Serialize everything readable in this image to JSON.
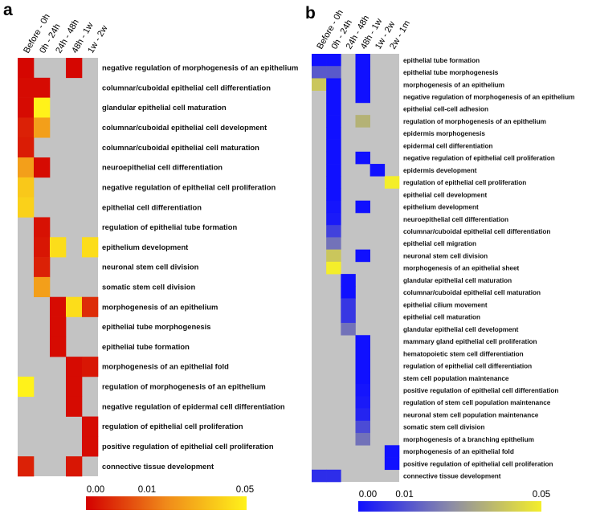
{
  "chart_data": [
    {
      "type": "heatmap",
      "panel": "a",
      "columns": [
        "Before - 0h",
        "0h - 24h",
        "24h - 48h",
        "48h - 1w",
        "1w - 2w"
      ],
      "rows": [
        "negative regulation of morphogenesis of an epithelium",
        "columnar/cuboidal epithelial cell differentiation",
        "glandular epithelial cell maturation",
        "columnar/cuboidal epithelial cell development",
        "columnar/cuboidal epithelial cell maturation",
        "neuroepithelial cell differentiation",
        "negative regulation of epithelial cell proliferation",
        "epithelial cell differentiation",
        "regulation of epithelial tube formation",
        "epithelium development",
        "neuronal stem cell division",
        "somatic stem cell division",
        "morphogenesis of an epithelium",
        "epithelial tube morphogenesis",
        "epithelial tube formation",
        "morphogenesis of an epithelial fold",
        "regulation of morphogenesis of an epithelium",
        "negative regulation of epidermal cell differentiation",
        "regulation of epithelial cell proliferation",
        "positive regulation of epithelial cell proliferation",
        "connective tissue development"
      ],
      "values": [
        [
          0.001,
          null,
          null,
          0.001,
          null
        ],
        [
          0.002,
          0.002,
          null,
          null,
          null
        ],
        [
          0.002,
          0.05,
          null,
          null,
          null
        ],
        [
          0.006,
          0.03,
          null,
          null,
          null
        ],
        [
          0.005,
          null,
          null,
          null,
          null
        ],
        [
          0.03,
          0.002,
          null,
          null,
          null
        ],
        [
          0.04,
          null,
          null,
          null,
          null
        ],
        [
          0.042,
          null,
          null,
          null,
          null
        ],
        [
          null,
          0.003,
          null,
          null,
          null
        ],
        [
          null,
          0.004,
          0.045,
          null,
          0.045
        ],
        [
          null,
          0.006,
          null,
          null,
          null
        ],
        [
          null,
          0.03,
          null,
          null,
          null
        ],
        [
          null,
          null,
          0.002,
          0.045,
          0.008
        ],
        [
          null,
          null,
          0.002,
          null,
          null
        ],
        [
          null,
          null,
          0.002,
          null,
          null
        ],
        [
          null,
          null,
          null,
          0.002,
          0.004
        ],
        [
          0.05,
          null,
          null,
          0.002,
          null
        ],
        [
          null,
          null,
          null,
          0.002,
          null
        ],
        [
          null,
          null,
          null,
          null,
          0.002
        ],
        [
          null,
          null,
          null,
          null,
          0.002
        ],
        [
          0.006,
          null,
          null,
          0.004,
          null
        ]
      ],
      "legend": {
        "ticks": [
          "0.00",
          "0.01",
          "0.05"
        ],
        "range": [
          0.0,
          0.05
        ],
        "low_color": "#d40000",
        "mid_color": "#f08a1a",
        "high_color": "#fff21a"
      },
      "missing_color": "#c3c3c3"
    },
    {
      "type": "heatmap",
      "panel": "b",
      "columns": [
        "Before - 0h",
        "0h - 24h",
        "24h - 48h",
        "48h - 1w",
        "1w - 2w",
        "2w - 1m"
      ],
      "rows": [
        "epithelial tube formation",
        "epithelial tube morphogenesis",
        "morphogenesis of an epithelium",
        "negative regulation of morphogenesis of an epithelium",
        "epithelial cell-cell adhesion",
        "regulation of morphogenesis of an epithelium",
        "epidermis morphogenesis",
        "epidermal cell differentiation",
        "negative regulation of epithelial cell proliferation",
        "epidermis development",
        "regulation of epithelial cell proliferation",
        "epithelial cell development",
        "epithelium development",
        "neuroepithelial cell differentiation",
        "columnar/cuboidal epithelial cell differentiation",
        "epithelial cell migration",
        "neuronal stem cell division",
        "morphogenesis of an epithelial sheet",
        "glandular epithelial cell maturation",
        "columnar/cuboidal epithelial cell maturation",
        "epithelial cilium movement",
        "epithelial cell maturation",
        "glandular epithelial cell development",
        "mammary gland epithelial cell proliferation",
        "hematopoietic stem cell differentiation",
        "regulation of epithelial cell differentiation",
        "stem cell population maintenance",
        "positive regulation of epithelial cell differentiation",
        "regulation of stem cell population maintenance",
        "neuronal stem cell population maintenance",
        "somatic stem cell division",
        "morphogenesis of a branching epithelium",
        "morphogenesis of an epithelial fold",
        "positive regulation of epithelial cell proliferation",
        "connective tissue development"
      ],
      "values": [
        [
          0.0,
          0.0,
          null,
          0.0,
          null,
          null
        ],
        [
          0.015,
          0.015,
          null,
          0.0,
          null,
          null
        ],
        [
          0.04,
          0.0,
          null,
          0.0,
          null,
          null
        ],
        [
          null,
          0.0,
          null,
          0.0,
          null,
          null
        ],
        [
          null,
          0.0,
          null,
          null,
          null,
          null
        ],
        [
          null,
          0.0,
          null,
          0.035,
          null,
          null
        ],
        [
          null,
          0.0,
          null,
          null,
          null,
          null
        ],
        [
          null,
          0.0,
          null,
          null,
          null,
          null
        ],
        [
          null,
          0.0,
          null,
          0.0,
          null,
          null
        ],
        [
          null,
          0.0,
          null,
          null,
          0.0,
          null
        ],
        [
          null,
          0.0,
          null,
          null,
          null,
          0.05
        ],
        [
          null,
          0.0,
          null,
          null,
          null,
          null
        ],
        [
          null,
          0.001,
          null,
          0.0,
          null,
          null
        ],
        [
          null,
          0.002,
          null,
          null,
          null,
          null
        ],
        [
          null,
          0.01,
          null,
          null,
          null,
          null
        ],
        [
          null,
          0.02,
          null,
          null,
          null,
          null
        ],
        [
          null,
          0.04,
          null,
          0.0,
          null,
          null
        ],
        [
          null,
          0.05,
          null,
          null,
          null,
          null
        ],
        [
          null,
          null,
          0.0,
          null,
          null,
          null
        ],
        [
          null,
          null,
          0.0,
          null,
          null,
          null
        ],
        [
          null,
          null,
          0.008,
          null,
          null,
          null
        ],
        [
          null,
          null,
          0.008,
          null,
          null,
          null
        ],
        [
          null,
          null,
          0.02,
          null,
          null,
          null
        ],
        [
          null,
          null,
          null,
          0.0,
          null,
          null
        ],
        [
          null,
          null,
          null,
          0.0,
          null,
          null
        ],
        [
          null,
          null,
          null,
          0.0,
          null,
          null
        ],
        [
          null,
          null,
          null,
          0.0,
          null,
          null
        ],
        [
          null,
          null,
          null,
          0.001,
          null,
          null
        ],
        [
          null,
          null,
          null,
          0.002,
          null,
          null
        ],
        [
          null,
          null,
          null,
          0.004,
          null,
          null
        ],
        [
          null,
          null,
          null,
          0.012,
          null,
          null
        ],
        [
          null,
          null,
          null,
          0.02,
          null,
          null
        ],
        [
          null,
          null,
          null,
          null,
          null,
          0.0
        ],
        [
          null,
          null,
          null,
          null,
          null,
          0.0
        ],
        [
          0.006,
          0.006,
          null,
          null,
          null,
          null
        ]
      ],
      "legend": {
        "ticks": [
          "0.00",
          "0.01",
          "0.05"
        ],
        "range": [
          0.0,
          0.05
        ],
        "low_color": "#1010ff",
        "mid_color": "#8a8aa8",
        "high_color": "#f4ee2a"
      },
      "missing_color": "#c3c3c3"
    }
  ],
  "panels": {
    "a_letter": "a",
    "b_letter": "b"
  }
}
